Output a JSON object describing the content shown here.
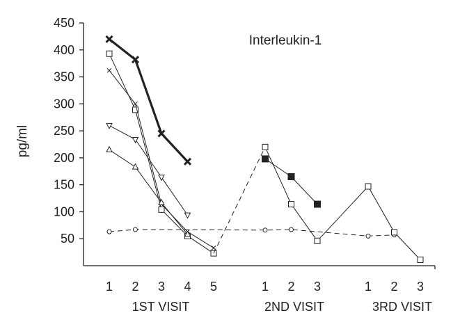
{
  "chart_data": {
    "type": "line",
    "title": "Interleukin-1",
    "ylabel": "pg/ml",
    "ylim": [
      0,
      450
    ],
    "yticks": [
      50,
      100,
      150,
      200,
      250,
      300,
      350,
      400,
      450
    ],
    "groups": [
      {
        "label": "1ST VISIT",
        "ticks": [
          "1",
          "2",
          "3",
          "4",
          "5"
        ]
      },
      {
        "label": "2ND VISIT",
        "ticks": [
          "1",
          "2",
          "3"
        ]
      },
      {
        "label": "3RD VISIT",
        "ticks": [
          "1",
          "2",
          "3"
        ]
      }
    ],
    "series": [
      {
        "marker": "bold-cross",
        "line": "bold",
        "color": "#222222",
        "points": [
          [
            "1ST VISIT",
            "1",
            420
          ],
          [
            "1ST VISIT",
            "2",
            382
          ],
          [
            "1ST VISIT",
            "3",
            245
          ],
          [
            "1ST VISIT",
            "4",
            193
          ]
        ]
      },
      {
        "marker": "open-square",
        "line": "solid",
        "color": "#222222",
        "points": [
          [
            "1ST VISIT",
            "1",
            393
          ],
          [
            "1ST VISIT",
            "2",
            289
          ],
          [
            "1ST VISIT",
            "3",
            104
          ],
          [
            "1ST VISIT",
            "4",
            55
          ],
          [
            "1ST VISIT",
            "5",
            23
          ]
        ]
      },
      {
        "marker": "cross",
        "line": "solid",
        "color": "#222222",
        "points": [
          [
            "1ST VISIT",
            "1",
            362
          ],
          [
            "1ST VISIT",
            "2",
            300
          ],
          [
            "1ST VISIT",
            "3",
            114
          ],
          [
            "1ST VISIT",
            "4",
            63
          ],
          [
            "1ST VISIT",
            "5",
            33
          ]
        ]
      },
      {
        "marker": "down-triangle",
        "line": "solid",
        "color": "#222222",
        "points": [
          [
            "1ST VISIT",
            "1",
            260
          ],
          [
            "1ST VISIT",
            "2",
            234
          ],
          [
            "1ST VISIT",
            "3",
            164
          ],
          [
            "1ST VISIT",
            "4",
            94
          ]
        ]
      },
      {
        "marker": "up-triangle",
        "line": "solid",
        "color": "#222222",
        "points": [
          [
            "1ST VISIT",
            "1",
            215
          ],
          [
            "1ST VISIT",
            "2",
            183
          ],
          [
            "1ST VISIT",
            "3",
            117
          ],
          [
            "1ST VISIT",
            "4",
            58
          ]
        ]
      },
      {
        "marker": "circle",
        "line": "dashed",
        "color": "#222222",
        "points": [
          [
            "1ST VISIT",
            "1",
            63
          ],
          [
            "1ST VISIT",
            "2",
            67
          ],
          [
            "2ND VISIT",
            "1",
            66
          ],
          [
            "2ND VISIT",
            "2",
            67
          ],
          [
            "3RD VISIT",
            "1",
            55
          ],
          [
            "3RD VISIT",
            "2",
            57
          ]
        ]
      },
      {
        "marker": "none",
        "line": "dashed",
        "color": "#222222",
        "points": [
          [
            "1ST VISIT",
            "5",
            23
          ],
          [
            "2ND VISIT",
            "1",
            220
          ]
        ]
      },
      {
        "marker": "open-square",
        "line": "solid",
        "color": "#222222",
        "points": [
          [
            "2ND VISIT",
            "1",
            220
          ],
          [
            "2ND VISIT",
            "2",
            114
          ],
          [
            "2ND VISIT",
            "3",
            46
          ],
          [
            "3RD VISIT",
            "1",
            147
          ],
          [
            "3RD VISIT",
            "2",
            62
          ],
          [
            "3RD VISIT",
            "3",
            11
          ]
        ]
      },
      {
        "marker": "filled-square",
        "line": "solid",
        "color": "#222222",
        "points": [
          [
            "2ND VISIT",
            "1",
            198
          ],
          [
            "2ND VISIT",
            "2",
            165
          ],
          [
            "2ND VISIT",
            "3",
            114
          ]
        ]
      }
    ]
  }
}
